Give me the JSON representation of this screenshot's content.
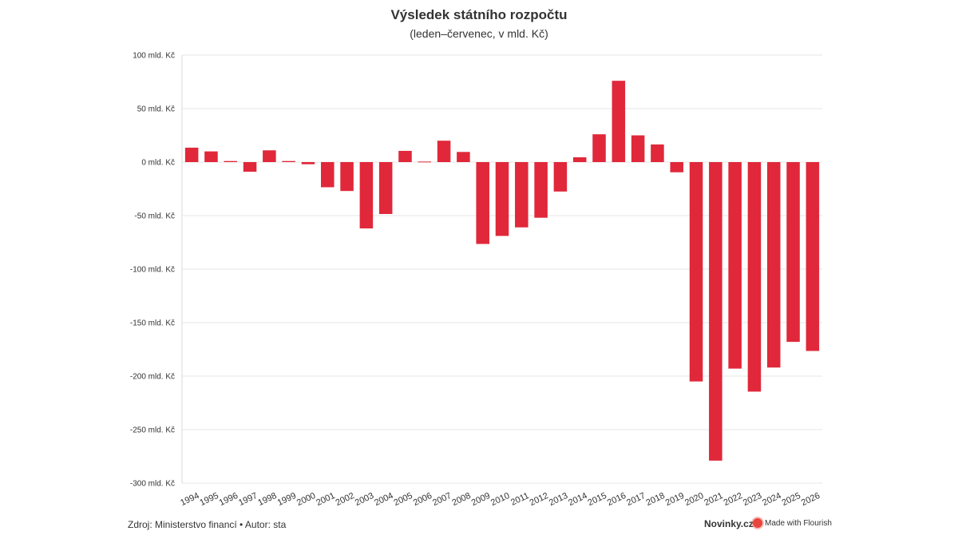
{
  "chart_data": {
    "type": "bar",
    "title": "Výsledek státního rozpočtu",
    "subtitle": "(leden–červenec, v mld. Kč)",
    "categories": [
      "1994",
      "1995",
      "1996",
      "1997",
      "1998",
      "1999",
      "2000",
      "2001",
      "2002",
      "2003",
      "2004",
      "2005",
      "2006",
      "2007",
      "2008",
      "2009",
      "2010",
      "2011",
      "2012",
      "2013",
      "2014",
      "2015",
      "2016",
      "2017",
      "2018",
      "2019",
      "2020",
      "2021",
      "2022",
      "2023",
      "2024",
      "2025",
      "2026"
    ],
    "values": [
      13.5,
      10,
      1,
      -9,
      11,
      1,
      -2,
      -23.5,
      -27,
      -62,
      -48.5,
      10.5,
      0.5,
      20,
      9.5,
      -76.5,
      -69,
      -61,
      -52,
      -27.5,
      4.5,
      26,
      76,
      25,
      16.5,
      -9.5,
      -205,
      -279,
      -193,
      -214.5,
      -192,
      -168,
      -176.5
    ],
    "ylim": [
      -300,
      100
    ],
    "yticks": [
      100,
      50,
      0,
      -50,
      -100,
      -150,
      -200,
      -250,
      -300
    ],
    "ytick_labels": [
      "100 mld. Kč",
      "50 mld. Kč",
      "0 mld. Kč",
      "-50 mld. Kč",
      "-100 mld. Kč",
      "-150 mld. Kč",
      "-200 mld. Kč",
      "-250 mld. Kč",
      "-300 mld. Kč"
    ],
    "bar_color": "#e0283a",
    "grid": true,
    "xlabel": "",
    "ylabel": ""
  },
  "footer": {
    "source": "Zdroj: Ministerstvo financí • Autor: sta",
    "brand": "Novinky.cz",
    "flourish": "Made with Flourish"
  }
}
